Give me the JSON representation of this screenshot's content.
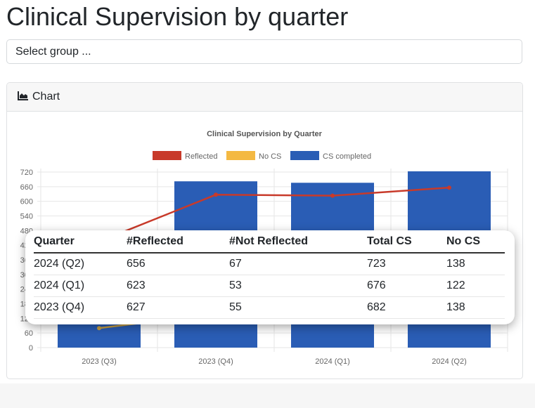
{
  "page": {
    "title": "Clinical Supervision by quarter"
  },
  "select": {
    "placeholder": "Select group ..."
  },
  "card": {
    "header_label": "Chart",
    "header_icon": "area-chart-icon"
  },
  "chart_data": {
    "type": "bar",
    "title": "Clinical Supervision by Quarter",
    "categories": [
      "2023 (Q3)",
      "2023 (Q4)",
      "2024 (Q1)",
      "2024 (Q2)"
    ],
    "ylim": [
      0,
      720
    ],
    "yticks": [
      0,
      60,
      120,
      180,
      240,
      300,
      360,
      420,
      480,
      540,
      600,
      660,
      720
    ],
    "grid": true,
    "legend_position": "top",
    "series": [
      {
        "name": "Reflected",
        "type": "line",
        "color": "#c83a2a",
        "values": [
          435,
          627,
          623,
          656
        ]
      },
      {
        "name": "No CS",
        "type": "line",
        "color": "#f4b942",
        "values": [
          80,
          138,
          122,
          138
        ]
      },
      {
        "name": "CS completed",
        "type": "bar",
        "color": "#2a5db5",
        "values": [
          470,
          682,
          676,
          723
        ]
      }
    ]
  },
  "tooltip_table": {
    "columns": [
      "Quarter",
      "#Reflected",
      "#Not Reflected",
      "Total CS",
      "No CS"
    ],
    "rows": [
      [
        "2024 (Q2)",
        "656",
        "67",
        "723",
        "138"
      ],
      [
        "2024 (Q1)",
        "623",
        "53",
        "676",
        "122"
      ],
      [
        "2023 (Q4)",
        "627",
        "55",
        "682",
        "138"
      ]
    ]
  }
}
